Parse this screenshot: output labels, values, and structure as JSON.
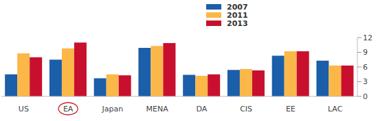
{
  "chart_data": {
    "type": "bar",
    "categories": [
      "US",
      "EA",
      "Japan",
      "MENA",
      "DA",
      "CIS",
      "EE",
      "LAC"
    ],
    "series": [
      {
        "name": "2007",
        "color": "#1b5ea9",
        "values": [
          4.5,
          7.5,
          3.7,
          9.9,
          4.4,
          5.4,
          8.3,
          7.3
        ]
      },
      {
        "name": "2011",
        "color": "#fbb848",
        "values": [
          8.8,
          9.8,
          4.5,
          10.3,
          4.2,
          5.6,
          9.2,
          6.3
        ]
      },
      {
        "name": "2013",
        "color": "#c8102e",
        "values": [
          8.0,
          11.0,
          4.3,
          10.9,
          4.5,
          5.3,
          9.2,
          6.3
        ]
      }
    ],
    "ylim": [
      0,
      12
    ],
    "yticks": [
      0,
      3,
      6,
      9,
      12
    ],
    "grid": false,
    "legend": "top"
  }
}
